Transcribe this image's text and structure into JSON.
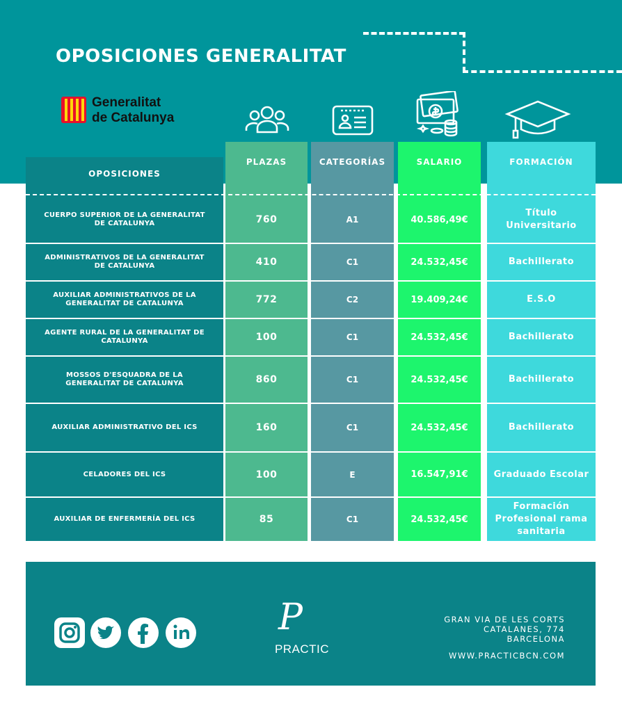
{
  "header": {
    "title": "OPOSICIONES GENERALITAT"
  },
  "logo": {
    "line1": "Generalitat",
    "line2": "de Catalunya"
  },
  "icons": {
    "plazas": "people-group-icon",
    "categorias": "id-card-icon",
    "salario": "money-coins-icon",
    "formacion": "graduation-cap-icon"
  },
  "columns": {
    "oposiciones": "OPOSICIONES",
    "plazas": "PLAZAS",
    "categorias": "CATEGORÍAS",
    "salario": "SALARIO",
    "formacion": "FORMACIÓN"
  },
  "rows": [
    {
      "oposicion": "CUERPO SUPERIOR DE LA GENERALITAT DE CATALUNYA",
      "plazas": "760",
      "categoria": "A1",
      "salario": "40.586,49€",
      "formacion": "Título Universitario"
    },
    {
      "oposicion": "ADMINISTRATIVOS DE LA GENERALITAT DE CATALUNYA",
      "plazas": "410",
      "categoria": "C1",
      "salario": "24.532,45€",
      "formacion": "Bachillerato"
    },
    {
      "oposicion": "AUXILIAR ADMINISTRATIVOS DE LA GENERALITAT DE CATALUNYA",
      "plazas": "772",
      "categoria": "C2",
      "salario": "19.409,24€",
      "formacion": "E.S.O"
    },
    {
      "oposicion": "AGENTE RURAL DE LA GENERALITAT DE CATALUNYA",
      "plazas": "100",
      "categoria": "C1",
      "salario": "24.532,45€",
      "formacion": "Bachillerato"
    },
    {
      "oposicion": "MOSSOS D'ESQUADRA DE LA GENERALITAT DE CATALUNYA",
      "plazas": "860",
      "categoria": "C1",
      "salario": "24.532,45€",
      "formacion": "Bachillerato"
    },
    {
      "oposicion": "AUXILIAR ADMINISTRATIVO DEL ICS",
      "plazas": "160",
      "categoria": "C1",
      "salario": "24.532,45€",
      "formacion": "Bachillerato"
    },
    {
      "oposicion": "CELADORES DEL ICS",
      "plazas": "100",
      "categoria": "E",
      "salario": "16.547,91€",
      "formacion": "Graduado Escolar"
    },
    {
      "oposicion": "AUXILIAR DE ENFERMERÍA DEL ICS",
      "plazas": "85",
      "categoria": "C1",
      "salario": "24.532,45€",
      "formacion": "Formación Profesional rama sanitaria"
    }
  ],
  "footer": {
    "social": [
      "instagram-icon",
      "twitter-icon",
      "facebook-icon",
      "linkedin-icon"
    ],
    "brand_mark": "P",
    "brand_name": "PRACTIC",
    "address_line1": "GRAN VIA DE LES CORTS",
    "address_line2": "CATALANES, 774",
    "address_line3": "BARCELONA",
    "website": "WWW.PRACTICBCN.COM"
  },
  "colors": {
    "header_bg": "#00959b",
    "oposiciones": "#0b8388",
    "plazas": "#4db98f",
    "categorias": "#5798a2",
    "salario": "#1df56d",
    "formacion": "#3ed9dc"
  }
}
